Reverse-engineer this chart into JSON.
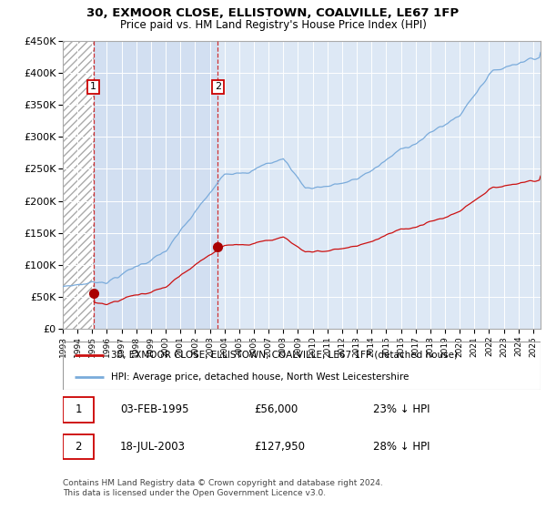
{
  "title": "30, EXMOOR CLOSE, ELLISTOWN, COALVILLE, LE67 1FP",
  "subtitle": "Price paid vs. HM Land Registry's House Price Index (HPI)",
  "legend_line1": "30, EXMOOR CLOSE, ELLISTOWN, COALVILLE, LE67 1FP (detached house)",
  "legend_line2": "HPI: Average price, detached house, North West Leicestershire",
  "annotation1_date": "03-FEB-1995",
  "annotation1_price": "£56,000",
  "annotation1_hpi": "23% ↓ HPI",
  "annotation2_date": "18-JUL-2003",
  "annotation2_price": "£127,950",
  "annotation2_hpi": "28% ↓ HPI",
  "footer": "Contains HM Land Registry data © Crown copyright and database right 2024.\nThis data is licensed under the Open Government Licence v3.0.",
  "sale1_year": 1995.09,
  "sale1_value": 56000,
  "sale2_year": 2003.54,
  "sale2_value": 127950,
  "hpi_line_color": "#7aabdb",
  "price_line_color": "#cc1111",
  "sale_dot_color": "#aa0000",
  "vline_color": "#cc1111",
  "plot_bg_color": "#dde8f5",
  "ylim_min": 0,
  "ylim_max": 450000,
  "xlim_min": 1993,
  "xlim_max": 2025.5
}
